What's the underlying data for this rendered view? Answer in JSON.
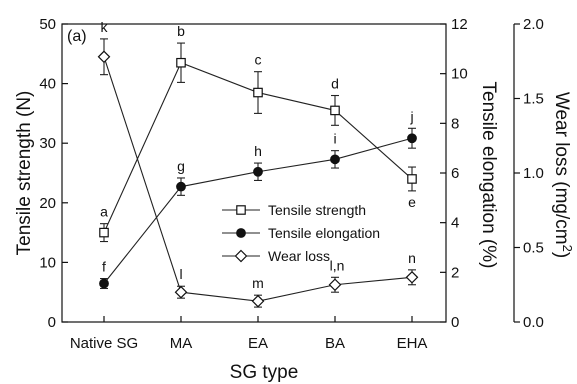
{
  "chart_data": {
    "type": "line",
    "panel_label": "(a)",
    "xlabel": "SG type",
    "categories": [
      "Native SG",
      "MA",
      "EA",
      "BA",
      "EHA"
    ],
    "axes": {
      "left": {
        "label": "Tensile strength (N)",
        "range": [
          0,
          50
        ],
        "ticks": [
          "0",
          "10",
          "20",
          "30",
          "40",
          "50"
        ]
      },
      "right1": {
        "label": "Tensile elongation (%)",
        "range": [
          0,
          12
        ],
        "ticks": [
          "0",
          "2",
          "4",
          "6",
          "8",
          "10",
          "12"
        ]
      },
      "right2": {
        "label_main": "Wear loss (mg/cm",
        "label_sup": "2",
        "label_end": ")",
        "range": [
          0,
          2.0
        ],
        "ticks": [
          "0.0",
          "0.5",
          "1.0",
          "1.5",
          "2.0"
        ]
      }
    },
    "series": [
      {
        "name": "Tensile strength",
        "axis": "left",
        "marker": "open-square",
        "values": [
          15.0,
          43.5,
          38.5,
          35.5,
          24.0
        ],
        "errors": [
          1.5,
          3.3,
          3.5,
          2.5,
          2.0
        ],
        "letters": [
          "a",
          "b",
          "c",
          "d",
          "e"
        ]
      },
      {
        "name": "Tensile elongation",
        "axis": "right1",
        "marker": "filled-circle",
        "values": [
          1.55,
          5.45,
          6.05,
          6.55,
          7.4
        ],
        "errors": [
          0.2,
          0.35,
          0.35,
          0.35,
          0.4
        ],
        "letters": [
          "f",
          "g",
          "h",
          "i",
          "j"
        ]
      },
      {
        "name": "Wear loss",
        "axis": "right2",
        "marker": "open-diamond",
        "values": [
          1.78,
          0.2,
          0.14,
          0.25,
          0.3
        ],
        "errors": [
          0.12,
          0.04,
          0.04,
          0.05,
          0.05
        ],
        "letters": [
          "k",
          "l",
          "m",
          "l,n",
          "n"
        ]
      }
    ],
    "legend": {
      "position": "center-right"
    }
  }
}
